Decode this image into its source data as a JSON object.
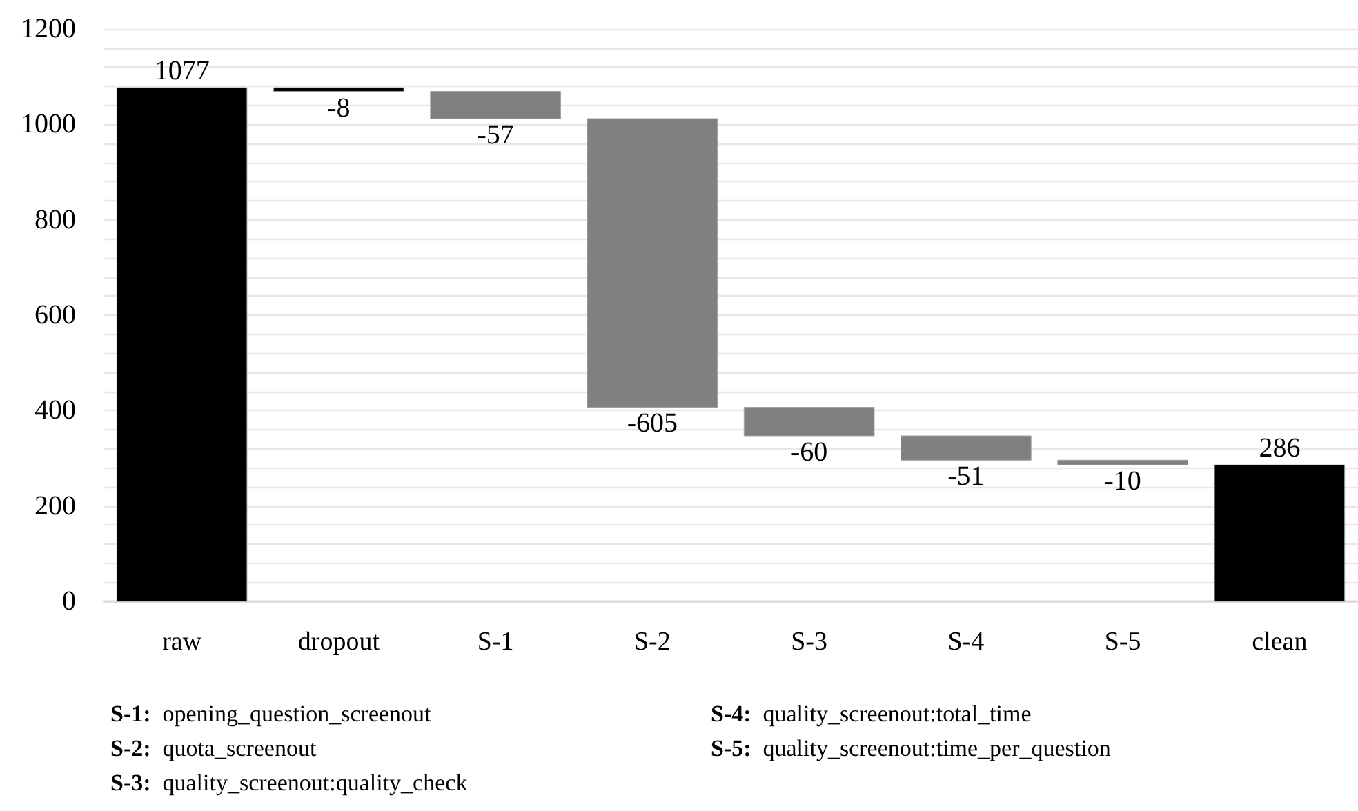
{
  "chart_data": {
    "type": "bar",
    "categories": [
      "raw",
      "dropout",
      "S-1",
      "S-2",
      "S-3",
      "S-4",
      "S-5",
      "clean"
    ],
    "values": [
      1077,
      -8,
      -57,
      -605,
      -60,
      -51,
      -10,
      286
    ],
    "base": [
      0,
      1077,
      1069,
      1012,
      407,
      347,
      296,
      0
    ],
    "colors": [
      "#000000",
      "#000000",
      "#808080",
      "#808080",
      "#808080",
      "#808080",
      "#808080",
      "#000000"
    ],
    "data_labels": true,
    "ylim": [
      0,
      1200
    ],
    "yticks": [
      0,
      {
        "value": 40,
        "label": null
      },
      {
        "value": 80,
        "label": null
      },
      {
        "value": 120,
        "label": null
      },
      {
        "value": 160,
        "label": null
      },
      200,
      {
        "value": 240,
        "label": null
      },
      {
        "value": 280,
        "label": null
      },
      {
        "value": 320,
        "label": null
      },
      {
        "value": 360,
        "label": null
      },
      400,
      {
        "value": 440,
        "label": null
      },
      {
        "value": 480,
        "label": null
      },
      {
        "value": 520,
        "label": null
      },
      {
        "value": 560,
        "label": null
      },
      600,
      {
        "value": 640,
        "label": null
      },
      {
        "value": 680,
        "label": null
      },
      {
        "value": 720,
        "label": null
      },
      {
        "value": 760,
        "label": null
      },
      800,
      {
        "value": 840,
        "label": null
      },
      {
        "value": 880,
        "label": null
      },
      {
        "value": 920,
        "label": null
      },
      {
        "value": 960,
        "label": null
      },
      1000,
      {
        "value": 1040,
        "label": null
      },
      {
        "value": 1080,
        "label": null
      },
      {
        "value": 1120,
        "label": null
      },
      {
        "value": 1160,
        "label": null
      },
      1200
    ],
    "grid": "y",
    "annotations": [
      "S-1: opening_question_screenout",
      "S-2: quota_screenout",
      "S-3: quality_screenout:quality_check",
      "S-4: quality_screenout:total_time",
      "S-5: quality_screenout:time_per_question"
    ]
  }
}
